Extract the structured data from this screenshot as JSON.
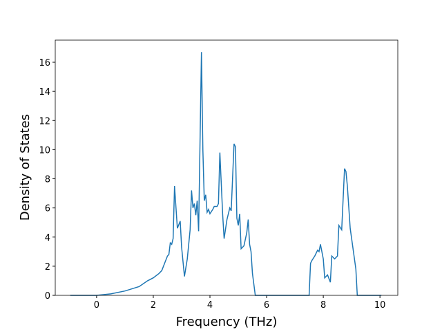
{
  "chart_data": {
    "type": "line",
    "x_label": "Frequency (THz)",
    "y_label": "Density of States",
    "xlim": [
      -1.46,
      10.63
    ],
    "ylim": [
      0,
      17.52
    ],
    "xticks": [
      0,
      2,
      4,
      6,
      8,
      10
    ],
    "yticks": [
      0,
      2,
      4,
      6,
      8,
      10,
      12,
      14,
      16
    ],
    "series": [
      {
        "color": "#1f77b4",
        "x": [
          -0.93,
          0,
          0.5,
          1.0,
          1.5,
          1.8,
          2.0,
          2.2,
          2.3,
          2.4,
          2.5,
          2.55,
          2.6,
          2.65,
          2.7,
          2.75,
          2.85,
          2.95,
          3.0,
          3.1,
          3.2,
          3.3,
          3.35,
          3.4,
          3.45,
          3.5,
          3.55,
          3.6,
          3.7,
          3.75,
          3.8,
          3.85,
          3.9,
          3.95,
          4.0,
          4.1,
          4.15,
          4.25,
          4.3,
          4.35,
          4.45,
          4.5,
          4.6,
          4.7,
          4.75,
          4.85,
          4.9,
          4.95,
          5.0,
          5.05,
          5.1,
          5.2,
          5.3,
          5.35,
          5.4,
          5.45,
          5.5,
          5.6,
          7.5,
          7.55,
          7.6,
          7.7,
          7.8,
          7.85,
          7.9,
          8.0,
          8.05,
          8.15,
          8.25,
          8.3,
          8.4,
          8.5,
          8.55,
          8.65,
          8.75,
          8.8,
          8.85,
          8.95,
          9.05,
          9.15,
          9.2,
          10.05
        ],
        "values": [
          0,
          0,
          0.1,
          0.3,
          0.6,
          1.0,
          1.2,
          1.5,
          1.7,
          2.2,
          2.7,
          2.8,
          3.6,
          3.5,
          3.9,
          7.5,
          4.6,
          5.1,
          3.3,
          1.3,
          2.5,
          4.5,
          7.2,
          6.0,
          6.3,
          5.5,
          6.5,
          4.4,
          16.7,
          10,
          6.5,
          6.9,
          5.7,
          5.9,
          5.6,
          5.9,
          6.1,
          6.1,
          6.3,
          9.8,
          5.5,
          3.9,
          5.2,
          6.0,
          5.8,
          10.4,
          10.2,
          5.3,
          4.8,
          5.6,
          3.2,
          3.4,
          4.3,
          5.2,
          3.5,
          3.0,
          1.5,
          0,
          0,
          2.2,
          2.4,
          2.7,
          3.1,
          3.0,
          3.5,
          2.5,
          1.2,
          1.4,
          0.9,
          2.7,
          2.5,
          2.7,
          4.8,
          4.5,
          8.7,
          8.5,
          7.5,
          4.6,
          3.2,
          1.8,
          0,
          0
        ]
      }
    ]
  }
}
